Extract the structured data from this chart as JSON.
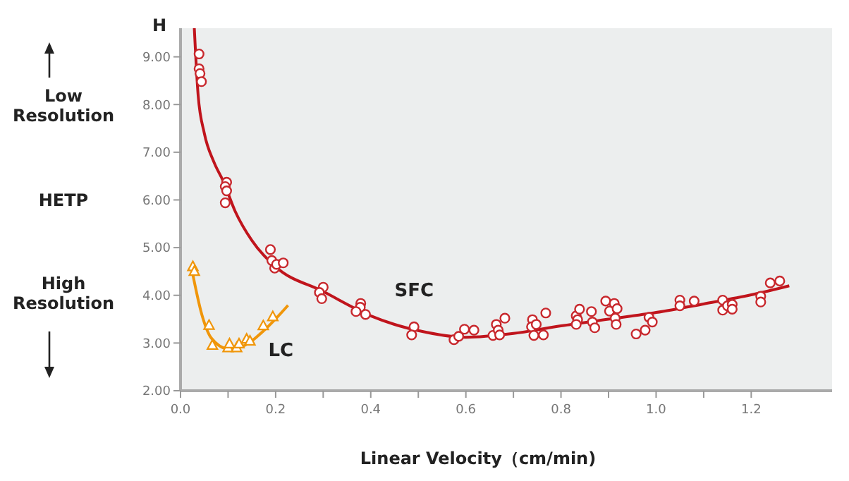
{
  "chart_data": {
    "type": "scatter",
    "xlabel": "Linear Velocity（cm/min)",
    "ylabel": "HETP",
    "annotations": [
      "H",
      "Low Resolution",
      "High Resolution"
    ],
    "xlim": [
      0,
      1.37
    ],
    "ylim": [
      2,
      9.6
    ],
    "xticks": [
      {
        "value": 0,
        "label": "0.0"
      },
      {
        "value": 0.1,
        "label": null
      },
      {
        "value": 0.2,
        "label": "0.2"
      },
      {
        "value": 0.3,
        "label": null
      },
      {
        "value": 0.4,
        "label": "0.4"
      },
      {
        "value": 0.5,
        "label": null
      },
      {
        "value": 0.6,
        "label": "0.6"
      },
      {
        "value": 0.7,
        "label": null
      },
      {
        "value": 0.8,
        "label": "0.8"
      },
      {
        "value": 0.9,
        "label": null
      },
      {
        "value": 1.0,
        "label": "1.0"
      },
      {
        "value": 1.1,
        "label": null
      },
      {
        "value": 1.2,
        "label": "1.2"
      }
    ],
    "yticks": [
      {
        "value": 2,
        "label": "2.00"
      },
      {
        "value": 3,
        "label": "3.00"
      },
      {
        "value": 4,
        "label": "4.00"
      },
      {
        "value": 5,
        "label": "5.00"
      },
      {
        "value": 6,
        "label": "6.00"
      },
      {
        "value": 7,
        "label": "7.00"
      },
      {
        "value": 8,
        "label": "8.00"
      },
      {
        "value": 9,
        "label": "9.00"
      }
    ],
    "grid": false,
    "series": [
      {
        "marker": "circle",
        "color": "#c8282d",
        "x": [
          0.039,
          0.039,
          0.041,
          0.044,
          0.097,
          0.094,
          0.097,
          0.094,
          0.189,
          0.192,
          0.198,
          0.202,
          0.216,
          0.3,
          0.292,
          0.297,
          0.379,
          0.378,
          0.369,
          0.389,
          0.491,
          0.486,
          0.575,
          0.585,
          0.597,
          0.617,
          0.657,
          0.664,
          0.668,
          0.671,
          0.682,
          0.74,
          0.738,
          0.748,
          0.743,
          0.763,
          0.768,
          0.832,
          0.835,
          0.832,
          0.839,
          0.864,
          0.866,
          0.871,
          0.894,
          0.902,
          0.912,
          0.918,
          0.914,
          0.916,
          0.958,
          0.977,
          0.985,
          0.992,
          1.05,
          1.05,
          1.08,
          1.14,
          1.14,
          1.15,
          1.16,
          1.16,
          1.22,
          1.22,
          1.24,
          1.26
        ],
        "values": [
          9.06,
          8.75,
          8.65,
          8.48,
          6.37,
          6.28,
          6.19,
          5.94,
          4.96,
          4.73,
          4.57,
          4.65,
          4.68,
          4.17,
          4.06,
          3.93,
          3.83,
          3.75,
          3.66,
          3.6,
          3.34,
          3.17,
          3.07,
          3.14,
          3.29,
          3.27,
          3.16,
          3.39,
          3.27,
          3.17,
          3.52,
          3.49,
          3.34,
          3.39,
          3.16,
          3.17,
          3.63,
          3.57,
          3.49,
          3.39,
          3.71,
          3.66,
          3.44,
          3.32,
          3.88,
          3.67,
          3.83,
          3.72,
          3.52,
          3.39,
          3.19,
          3.27,
          3.54,
          3.44,
          3.9,
          3.78,
          3.88,
          3.9,
          3.69,
          3.78,
          3.81,
          3.71,
          3.98,
          3.86,
          4.26,
          4.3
        ]
      },
      {
        "type": "line",
        "name": "SFC",
        "marker": "none",
        "color": "#c0141c",
        "x": [
          0.029,
          0.037,
          0.05,
          0.07,
          0.09,
          0.115,
          0.15,
          0.2,
          0.3,
          0.4,
          0.45,
          0.5,
          0.6,
          0.7,
          0.8,
          0.9,
          1.0,
          1.1,
          1.2,
          1.28
        ],
        "values": [
          9.6,
          8.2,
          7.4,
          6.8,
          6.39,
          5.76,
          5.15,
          4.6,
          4.08,
          3.57,
          3.39,
          3.26,
          3.12,
          3.2,
          3.36,
          3.5,
          3.64,
          3.82,
          4.01,
          4.2
        ]
      },
      {
        "marker": "triangle",
        "color": "#f0960a",
        "x": [
          0.026,
          0.029,
          0.06,
          0.067,
          0.1,
          0.103,
          0.118,
          0.123,
          0.139,
          0.146,
          0.174,
          0.194
        ],
        "values": [
          4.6,
          4.5,
          3.37,
          2.95,
          2.9,
          2.98,
          2.9,
          2.98,
          3.08,
          3.04,
          3.36,
          3.55
        ]
      },
      {
        "type": "line",
        "name": "LC",
        "marker": "none",
        "color": "#f0960a",
        "x": [
          0.024,
          0.045,
          0.065,
          0.1,
          0.135,
          0.174,
          0.226
        ],
        "values": [
          4.53,
          3.59,
          3.1,
          2.88,
          2.95,
          3.25,
          3.79
        ]
      }
    ]
  }
}
